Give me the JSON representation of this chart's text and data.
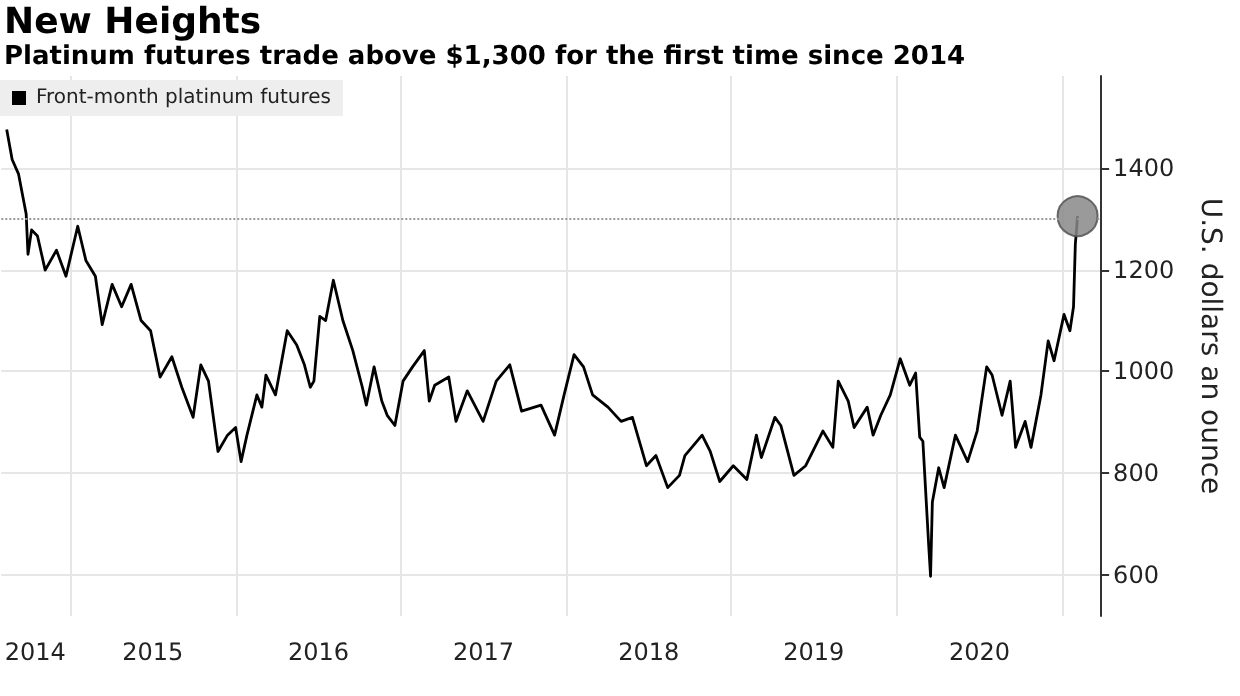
{
  "chart_data": {
    "type": "line",
    "title": "New Heights",
    "subtitle": "Platinum futures trade above $1,300 for the first time since 2014",
    "ylabel": "U.S. dollars an ounce",
    "xlim": [
      "2014-08-01",
      "2021-03-28"
    ],
    "xticks": [
      {
        "value": "2014-10-15",
        "label": "2014"
      },
      {
        "value": "2015-01-01",
        "label": null
      },
      {
        "value": "2015-07-02",
        "label": "2015"
      },
      {
        "value": "2016-01-01",
        "label": null
      },
      {
        "value": "2016-07-02",
        "label": "2016"
      },
      {
        "value": "2017-01-01",
        "label": null
      },
      {
        "value": "2017-07-02",
        "label": "2017"
      },
      {
        "value": "2018-01-01",
        "label": null
      },
      {
        "value": "2018-07-02",
        "label": "2018"
      },
      {
        "value": "2019-01-01",
        "label": null
      },
      {
        "value": "2019-07-02",
        "label": "2019"
      },
      {
        "value": "2020-01-01",
        "label": null
      },
      {
        "value": "2020-07-02",
        "label": "2020"
      },
      {
        "value": "2021-01-01",
        "label": null
      }
    ],
    "ylim": [
      520,
      1580
    ],
    "yticks": [
      600,
      800,
      1000,
      1200,
      1400
    ],
    "grid": true,
    "legend": "top left",
    "marker": "none",
    "line_style": "solid",
    "ref_lines": [
      {
        "axis": "y",
        "value": 1300,
        "color": "#999999",
        "line_style": "dotted"
      }
    ],
    "series": [
      {
        "name": "Front-month platinum futures",
        "color": "#000000",
        "x": [
          "2014-08-13",
          "2014-08-25",
          "2014-09-08",
          "2014-09-25",
          "2014-09-29",
          "2014-10-07",
          "2014-10-20",
          "2014-11-06",
          "2014-12-01",
          "2014-12-22",
          "2015-01-17",
          "2015-02-04",
          "2015-02-25",
          "2015-03-12",
          "2015-04-03",
          "2015-04-24",
          "2015-05-15",
          "2015-06-06",
          "2015-06-27",
          "2015-07-18",
          "2015-08-13",
          "2015-09-04",
          "2015-09-29",
          "2015-10-16",
          "2015-11-02",
          "2015-11-23",
          "2015-12-14",
          "2016-01-01",
          "2016-01-13",
          "2016-01-26",
          "2016-02-17",
          "2016-02-28",
          "2016-03-08",
          "2016-03-29",
          "2016-04-24",
          "2016-05-15",
          "2016-06-01",
          "2016-06-14",
          "2016-06-22",
          "2016-07-05",
          "2016-07-18",
          "2016-08-04",
          "2016-08-25",
          "2016-09-16",
          "2016-10-07",
          "2016-10-16",
          "2016-11-02",
          "2016-11-19",
          "2016-12-01",
          "2016-12-18",
          "2017-01-05",
          "2017-01-26",
          "2017-02-21",
          "2017-03-04",
          "2017-03-16",
          "2017-04-16",
          "2017-05-02",
          "2017-05-27",
          "2017-07-01",
          "2017-07-30",
          "2017-08-29",
          "2017-09-24",
          "2017-11-06",
          "2017-12-06",
          "2017-12-27",
          "2018-01-18",
          "2018-02-08",
          "2018-02-28",
          "2018-04-03",
          "2018-05-02",
          "2018-05-27",
          "2018-06-27",
          "2018-07-18",
          "2018-08-13",
          "2018-09-08",
          "2018-09-20",
          "2018-10-28",
          "2018-11-15",
          "2018-12-06",
          "2019-01-05",
          "2019-02-04",
          "2019-02-25",
          "2019-03-08",
          "2019-04-07",
          "2019-04-20",
          "2019-05-19",
          "2019-06-14",
          "2019-07-22",
          "2019-08-13",
          "2019-08-25",
          "2019-09-16",
          "2019-09-29",
          "2019-10-28",
          "2019-11-10",
          "2019-11-27",
          "2019-12-18",
          "2020-01-09",
          "2020-01-30",
          "2020-02-12",
          "2020-02-21",
          "2020-02-28",
          "2020-03-12",
          "2020-03-16",
          "2020-03-20",
          "2020-04-03",
          "2020-04-15",
          "2020-05-10",
          "2020-06-06",
          "2020-06-27",
          "2020-07-18",
          "2020-07-30",
          "2020-08-21",
          "2020-09-08",
          "2020-09-20",
          "2020-10-11",
          "2020-10-24",
          "2020-11-15",
          "2020-12-01",
          "2020-12-14",
          "2021-01-05",
          "2021-01-18",
          "2021-01-26",
          "2021-01-30",
          "2021-02-04"
        ],
        "values": [
          1475,
          1416,
          1388,
          1309,
          1230,
          1278,
          1266,
          1199,
          1238,
          1187,
          1285,
          1218,
          1187,
          1092,
          1171,
          1127,
          1171,
          1100,
          1080,
          989,
          1029,
          969,
          910,
          1013,
          981,
          843,
          875,
          890,
          823,
          875,
          954,
          930,
          993,
          954,
          1080,
          1052,
          1013,
          969,
          981,
          1108,
          1100,
          1179,
          1100,
          1041,
          969,
          934,
          1009,
          942,
          914,
          894,
          981,
          1009,
          1041,
          942,
          973,
          989,
          902,
          962,
          902,
          981,
          1013,
          922,
          934,
          875,
          954,
          1033,
          1009,
          954,
          930,
          902,
          910,
          815,
          835,
          772,
          796,
          835,
          875,
          843,
          784,
          815,
          788,
          875,
          831,
          910,
          894,
          796,
          815,
          883,
          851,
          981,
          942,
          890,
          930,
          875,
          914,
          954,
          1025,
          973,
          997,
          871,
          863,
          657,
          598,
          744,
          811,
          772,
          875,
          823,
          883,
          1009,
          993,
          914,
          981,
          851,
          902,
          851,
          954,
          1060,
          1021,
          1112,
          1080,
          1127,
          1250,
          1305
        ]
      },
      {
        "type": "scatter",
        "marker": "circle",
        "color": "#888888",
        "x": [
          "2021-02-04"
        ],
        "values": [
          1305
        ]
      }
    ]
  }
}
